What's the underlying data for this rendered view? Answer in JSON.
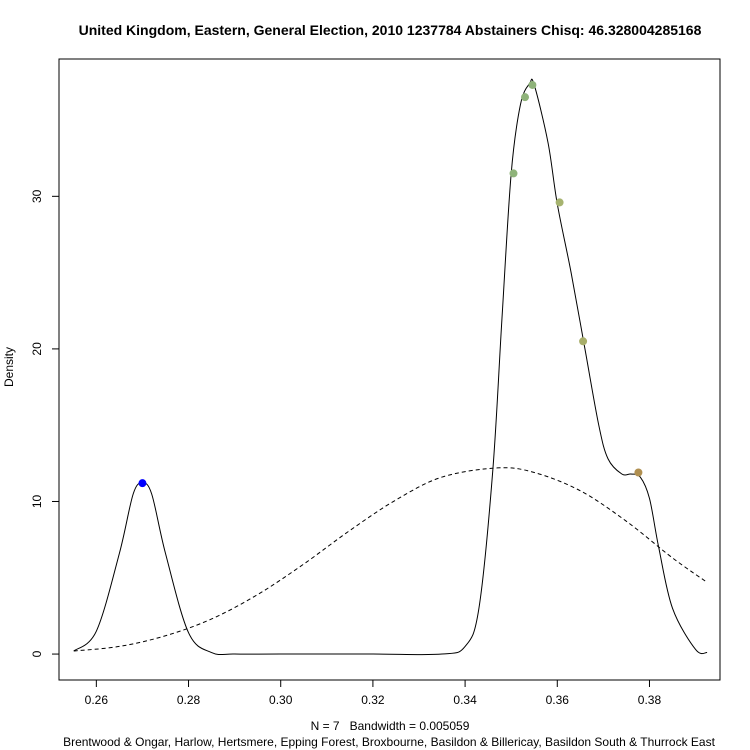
{
  "chart_data": {
    "type": "line",
    "title": "United Kingdom, Eastern, General Election, 2010 1237784 Abstainers Chisq: 46.328004285168",
    "xlabel": "N = 7   Bandwidth = 0.005059",
    "ylabel": "Density",
    "subtitle": "Brentwood & Ongar, Harlow, Hertsmere, Epping Forest, Broxbourne, Basildon & Billericay, Basildon South & Thurrock East",
    "xlim": [
      0.2519,
      0.3953
    ],
    "ylim": [
      -1.7,
      39.0
    ],
    "x_ticks": [
      0.26,
      0.28,
      0.3,
      0.32,
      0.34,
      0.36,
      0.38
    ],
    "x_tick_labels": [
      "0.26",
      "0.28",
      "0.30",
      "0.32",
      "0.34",
      "0.36",
      "0.38"
    ],
    "y_ticks": [
      0,
      10,
      20,
      30
    ],
    "y_tick_labels": [
      "0",
      "10",
      "20",
      "30"
    ],
    "grid": false,
    "series": [
      {
        "style": "solid",
        "color": "#000000",
        "x": [
          0.2551,
          0.26,
          0.265,
          0.268,
          0.27,
          0.272,
          0.275,
          0.28,
          0.285,
          0.29,
          0.3,
          0.32,
          0.335,
          0.34,
          0.343,
          0.346,
          0.348,
          0.35,
          0.352,
          0.354,
          0.355,
          0.358,
          0.36,
          0.363,
          0.366,
          0.369,
          0.371,
          0.374,
          0.376,
          0.378,
          0.38,
          0.382,
          0.385,
          0.39,
          0.3925
        ],
        "y": [
          0.2,
          1.5,
          6.6,
          10.5,
          11.2,
          10.5,
          6.6,
          1.4,
          0.1,
          0.0,
          0.0,
          0.0,
          0.0,
          0.5,
          3.0,
          12.0,
          22.0,
          31.5,
          36.0,
          37.4,
          37.3,
          33.5,
          29.5,
          25.0,
          20.0,
          15.0,
          12.8,
          11.8,
          11.8,
          11.6,
          10.2,
          7.0,
          3.0,
          0.3,
          0.1
        ]
      },
      {
        "style": "dashed",
        "color": "#000000",
        "x": [
          0.2551,
          0.265,
          0.275,
          0.285,
          0.295,
          0.305,
          0.315,
          0.325,
          0.335,
          0.347,
          0.355,
          0.365,
          0.375,
          0.385,
          0.3925
        ],
        "y": [
          0.2,
          0.5,
          1.2,
          2.3,
          3.9,
          5.9,
          8.1,
          10.1,
          11.6,
          12.2,
          11.9,
          10.7,
          8.7,
          6.3,
          4.7
        ]
      }
    ],
    "points": [
      {
        "x": 0.27,
        "y": 11.2,
        "color": "#0000ff"
      },
      {
        "x": 0.3505,
        "y": 31.5,
        "color": "#8fb37a"
      },
      {
        "x": 0.353,
        "y": 36.5,
        "color": "#8fb37a"
      },
      {
        "x": 0.3546,
        "y": 37.3,
        "color": "#8fb37a"
      },
      {
        "x": 0.3605,
        "y": 29.6,
        "color": "#a6b36f"
      },
      {
        "x": 0.3656,
        "y": 20.5,
        "color": "#a8ae6a"
      },
      {
        "x": 0.3776,
        "y": 11.9,
        "color": "#b08f50"
      }
    ]
  }
}
